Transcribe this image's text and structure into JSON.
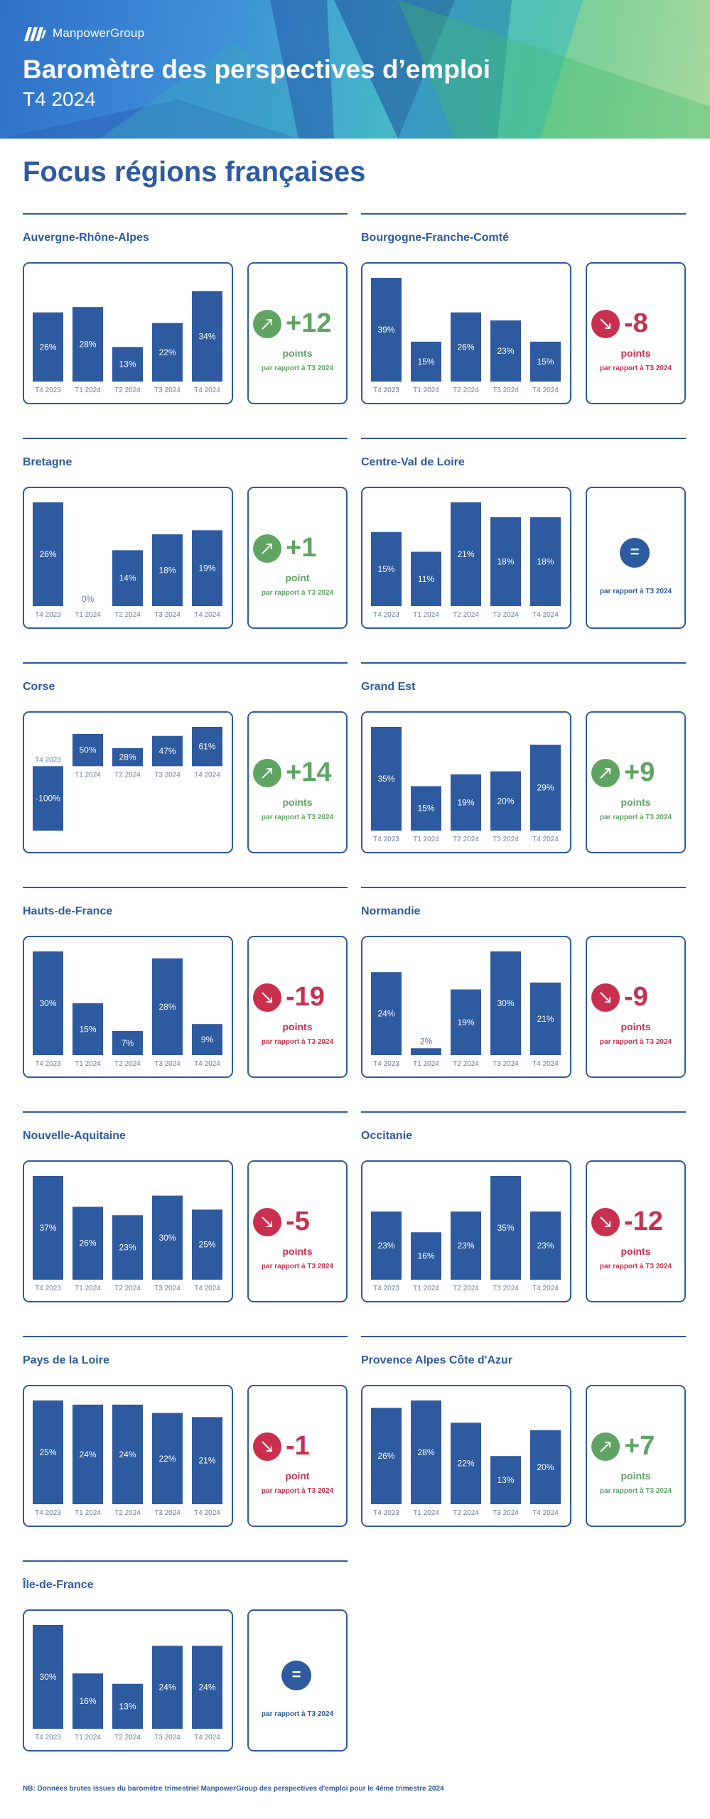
{
  "header": {
    "brand": "ManpowerGroup",
    "title": "Baromètre des perspectives d’emploi",
    "subtitle": "T4 2024"
  },
  "page_heading": "Focus régions françaises",
  "footnote": "NB: Données brutes issues du baromètre trimestriel ManpowerGroup des perspectives d'emploi pour le 4ème trimestre 2024",
  "colors": {
    "bar": "#2e5aa0",
    "up": "#5fa463",
    "down": "#c9304f",
    "same": "#2e5aa0"
  },
  "icons": {
    "up": "arrow-up-right-icon",
    "down": "arrow-down-right-icon",
    "same": "equals-icon"
  },
  "chart_data": [
    {
      "type": "bar",
      "region": "Auvergne-Rhône-Alpes",
      "categories": [
        "T4 2023",
        "T1 2024",
        "T2 2024",
        "T3 2024",
        "T4 2024"
      ],
      "values": [
        26,
        28,
        13,
        22,
        34
      ],
      "labels": [
        "26%",
        "28%",
        "13%",
        "22%",
        "34%"
      ],
      "ylim": [
        0,
        39
      ],
      "delta": {
        "direction": "up",
        "value": "+12",
        "unit": "points",
        "note": "par rapport à T3 2024"
      }
    },
    {
      "type": "bar",
      "region": "Bourgogne-Franche-Comté",
      "categories": [
        "T4 2023",
        "T1 2024",
        "T2 2024",
        "T3 2024",
        "T4 2024"
      ],
      "values": [
        39,
        15,
        26,
        23,
        15
      ],
      "labels": [
        "39%",
        "15%",
        "26%",
        "23%",
        "15%"
      ],
      "ylim": [
        0,
        39
      ],
      "delta": {
        "direction": "down",
        "value": "-8",
        "unit": "points",
        "note": "par rapport à T3 2024"
      }
    },
    {
      "type": "bar",
      "region": "Bretagne",
      "categories": [
        "T4 2023",
        "T1 2024",
        "T2 2024",
        "T3 2024",
        "T4 2024"
      ],
      "values": [
        26,
        0,
        14,
        18,
        19
      ],
      "labels": [
        "26%",
        "0%",
        "14%",
        "18%",
        "19%"
      ],
      "ylim": [
        0,
        26
      ],
      "delta": {
        "direction": "up",
        "value": "+1",
        "unit": "point",
        "note": "par rapport à T3 2024"
      }
    },
    {
      "type": "bar",
      "region": "Centre-Val de Loire",
      "categories": [
        "T4 2023",
        "T1 2024",
        "T2 2024",
        "T3 2024",
        "T4 2024"
      ],
      "values": [
        15,
        11,
        21,
        18,
        18
      ],
      "labels": [
        "15%",
        "11%",
        "21%",
        "18%",
        "18%"
      ],
      "ylim": [
        0,
        21
      ],
      "delta": {
        "direction": "same",
        "value": "=",
        "unit": "",
        "note": "par rapport à T3 2024"
      }
    },
    {
      "type": "bar",
      "region": "Corse",
      "categories": [
        "T4 2023",
        "T1 2024",
        "T2 2024",
        "T3 2024",
        "T4 2024"
      ],
      "values": [
        -100,
        50,
        28,
        47,
        61
      ],
      "labels": [
        "-100%",
        "50%",
        "28%",
        "47%",
        "61%"
      ],
      "ylim": [
        -100,
        61
      ],
      "delta": {
        "direction": "up",
        "value": "+14",
        "unit": "points",
        "note": "par rapport à T3 2024"
      }
    },
    {
      "type": "bar",
      "region": "Grand Est",
      "categories": [
        "T4 2023",
        "T1 2024",
        "T2 2024",
        "T3 2024",
        "T4 2024"
      ],
      "values": [
        35,
        15,
        19,
        20,
        29
      ],
      "labels": [
        "35%",
        "15%",
        "19%",
        "20%",
        "29%"
      ],
      "ylim": [
        0,
        35
      ],
      "delta": {
        "direction": "up",
        "value": "+9",
        "unit": "points",
        "note": "par rapport à T3 2024"
      }
    },
    {
      "type": "bar",
      "region": "Hauts-de-France",
      "categories": [
        "T4 2023",
        "T1 2024",
        "T2 2024",
        "T3 2024",
        "T4 2024"
      ],
      "values": [
        30,
        15,
        7,
        28,
        9
      ],
      "labels": [
        "30%",
        "15%",
        "7%",
        "28%",
        "9%"
      ],
      "ylim": [
        0,
        30
      ],
      "delta": {
        "direction": "down",
        "value": "-19",
        "unit": "points",
        "note": "par rapport à T3 2024"
      }
    },
    {
      "type": "bar",
      "region": "Normandie",
      "categories": [
        "T4 2023",
        "T1 2024",
        "T2 2024",
        "T3 2024",
        "T4 2024"
      ],
      "values": [
        24,
        2,
        19,
        30,
        21
      ],
      "labels": [
        "24%",
        "2%",
        "19%",
        "30%",
        "21%"
      ],
      "ylim": [
        0,
        30
      ],
      "delta": {
        "direction": "down",
        "value": "-9",
        "unit": "points",
        "note": "par rapport à T3 2024"
      }
    },
    {
      "type": "bar",
      "region": "Nouvelle-Aquitaine",
      "categories": [
        "T4 2023",
        "T1 2024",
        "T2 2024",
        "T3 2024",
        "T4 2024"
      ],
      "values": [
        37,
        26,
        23,
        30,
        25
      ],
      "labels": [
        "37%",
        "26%",
        "23%",
        "30%",
        "25%"
      ],
      "ylim": [
        0,
        37
      ],
      "delta": {
        "direction": "down",
        "value": "-5",
        "unit": "points",
        "note": "par rapport à T3 2024"
      }
    },
    {
      "type": "bar",
      "region": "Occitanie",
      "categories": [
        "T4 2023",
        "T1 2024",
        "T2 2024",
        "T3 2024",
        "T4 2024"
      ],
      "values": [
        23,
        16,
        23,
        35,
        23
      ],
      "labels": [
        "23%",
        "16%",
        "23%",
        "35%",
        "23%"
      ],
      "ylim": [
        0,
        35
      ],
      "delta": {
        "direction": "down",
        "value": "-12",
        "unit": "points",
        "note": "par rapport à T3 2024"
      }
    },
    {
      "type": "bar",
      "region": "Pays de la Loire",
      "categories": [
        "T4 2023",
        "T1 2024",
        "T2 2024",
        "T3 2024",
        "T4 2024"
      ],
      "values": [
        25,
        24,
        24,
        22,
        21
      ],
      "labels": [
        "25%",
        "24%",
        "24%",
        "22%",
        "21%"
      ],
      "ylim": [
        0,
        25
      ],
      "delta": {
        "direction": "down",
        "value": "-1",
        "unit": "point",
        "note": "par rapport à T3 2024"
      }
    },
    {
      "type": "bar",
      "region": "Provence Alpes Côte d'Azur",
      "categories": [
        "T4 2023",
        "T1 2024",
        "T2 2024",
        "T3 2024",
        "T4 2024"
      ],
      "values": [
        26,
        28,
        22,
        13,
        20
      ],
      "labels": [
        "26%",
        "28%",
        "22%",
        "13%",
        "20%"
      ],
      "ylim": [
        0,
        28
      ],
      "delta": {
        "direction": "up",
        "value": "+7",
        "unit": "points",
        "note": "par rapport à T3 2024"
      }
    },
    {
      "type": "bar",
      "region": "Île-de-France",
      "categories": [
        "T4 2023",
        "T1 2024",
        "T2 2024",
        "T3 2024",
        "T4 2024"
      ],
      "values": [
        30,
        16,
        13,
        24,
        24
      ],
      "labels": [
        "30%",
        "16%",
        "13%",
        "24%",
        "24%"
      ],
      "ylim": [
        0,
        30
      ],
      "delta": {
        "direction": "same",
        "value": "=",
        "unit": "",
        "note": "par rapport à T3 2024"
      }
    }
  ]
}
